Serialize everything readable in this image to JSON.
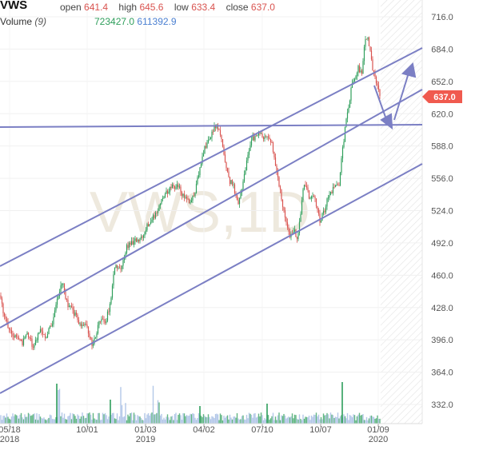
{
  "header": {
    "symbol": "VWS",
    "open_label": "open",
    "open_value": "641.4",
    "high_label": "high",
    "high_value": "645.6",
    "low_label": "low",
    "low_value": "633.4",
    "close_label": "close",
    "close_value": "637.0",
    "volume_label": "Volume",
    "volume_period": "(9)",
    "volume_value_1": "723427.0",
    "volume_value_2": "611392.9"
  },
  "watermark": "VWS,1D",
  "last_price_tag": "637.0",
  "colors": {
    "up": "#2e9e5b",
    "down": "#d9534f",
    "trendline": "#7b7fc4",
    "volume_area": "#9ab6e0",
    "tag_bg": "#f05a4f",
    "text_gray": "#555555",
    "vol_green": "#2e9e5b",
    "vol_blue": "#4a7fd1"
  },
  "chart_data": {
    "type": "candlestick",
    "y_axis": {
      "ticks": [
        "716.0",
        "684.0",
        "652.0",
        "620.0",
        "588.0",
        "556.0",
        "524.0",
        "492.0",
        "460.0",
        "428.0",
        "396.0",
        "364.0",
        "332.0"
      ],
      "ylim": [
        320,
        728
      ]
    },
    "x_axis": {
      "ticks": [
        {
          "label": "05/18",
          "sub": "2018"
        },
        {
          "label": "10/01",
          "sub": ""
        },
        {
          "label": "01/03",
          "sub": "2019"
        },
        {
          "label": "04/02",
          "sub": ""
        },
        {
          "label": "07/10",
          "sub": ""
        },
        {
          "label": "10/07",
          "sub": ""
        },
        {
          "label": "01/09",
          "sub": "2020"
        }
      ]
    },
    "price_anchors": [
      [
        0,
        440
      ],
      [
        5,
        420
      ],
      [
        12,
        405
      ],
      [
        20,
        398
      ],
      [
        28,
        393
      ],
      [
        35,
        402
      ],
      [
        42,
        388
      ],
      [
        50,
        405
      ],
      [
        58,
        400
      ],
      [
        65,
        412
      ],
      [
        72,
        440
      ],
      [
        78,
        452
      ],
      [
        84,
        432
      ],
      [
        92,
        423
      ],
      [
        100,
        412
      ],
      [
        108,
        408
      ],
      [
        115,
        392
      ],
      [
        120,
        402
      ],
      [
        126,
        418
      ],
      [
        132,
        415
      ],
      [
        138,
        430
      ],
      [
        143,
        470
      ],
      [
        150,
        465
      ],
      [
        158,
        488
      ],
      [
        166,
        492
      ],
      [
        172,
        495
      ],
      [
        178,
        500
      ],
      [
        186,
        512
      ],
      [
        194,
        520
      ],
      [
        202,
        533
      ],
      [
        208,
        542
      ],
      [
        214,
        547
      ],
      [
        222,
        550
      ],
      [
        230,
        537
      ],
      [
        238,
        532
      ],
      [
        244,
        543
      ],
      [
        250,
        568
      ],
      [
        256,
        585
      ],
      [
        262,
        595
      ],
      [
        268,
        608
      ],
      [
        274,
        605
      ],
      [
        280,
        580
      ],
      [
        286,
        555
      ],
      [
        292,
        548
      ],
      [
        298,
        533
      ],
      [
        304,
        552
      ],
      [
        310,
        580
      ],
      [
        316,
        595
      ],
      [
        322,
        600
      ],
      [
        328,
        598
      ],
      [
        334,
        596
      ],
      [
        340,
        592
      ],
      [
        344,
        572
      ],
      [
        348,
        555
      ],
      [
        352,
        535
      ],
      [
        356,
        522
      ],
      [
        360,
        505
      ],
      [
        364,
        498
      ],
      [
        368,
        505
      ],
      [
        372,
        495
      ],
      [
        376,
        520
      ],
      [
        380,
        552
      ],
      [
        384,
        545
      ],
      [
        388,
        535
      ],
      [
        392,
        542
      ],
      [
        396,
        525
      ],
      [
        400,
        515
      ],
      [
        404,
        520
      ],
      [
        408,
        530
      ],
      [
        412,
        542
      ],
      [
        416,
        545
      ],
      [
        420,
        550
      ],
      [
        424,
        548
      ],
      [
        428,
        582
      ],
      [
        432,
        608
      ],
      [
        436,
        628
      ],
      [
        440,
        648
      ],
      [
        444,
        652
      ],
      [
        448,
        665
      ],
      [
        452,
        658
      ],
      [
        456,
        690
      ],
      [
        460,
        697
      ],
      [
        463,
        682
      ],
      [
        466,
        665
      ],
      [
        470,
        652
      ],
      [
        474,
        640
      ],
      [
        476,
        637
      ]
    ],
    "volume_note": "volume histogram along bottom with sparse green spikes"
  }
}
